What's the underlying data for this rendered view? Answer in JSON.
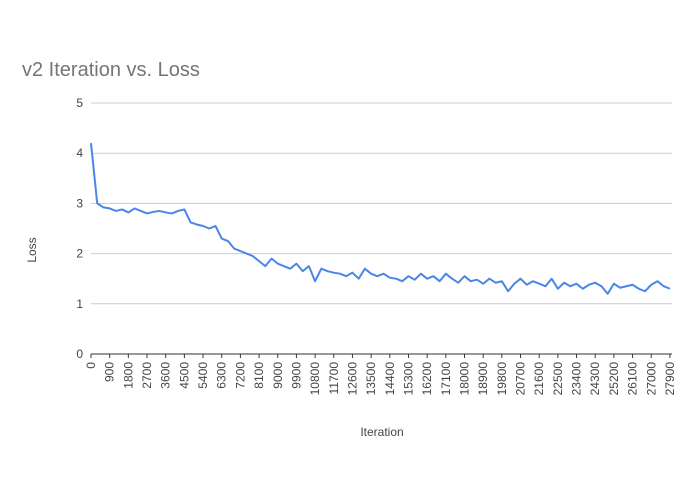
{
  "chart_data": {
    "type": "line",
    "title": "v2 Iteration vs. Loss",
    "x_label": "Iteration",
    "y_label": "Loss",
    "x": [
      0,
      300,
      600,
      900,
      1200,
      1500,
      1800,
      2100,
      2400,
      2700,
      3000,
      3300,
      3600,
      3900,
      4200,
      4500,
      4800,
      5100,
      5400,
      5700,
      6000,
      6300,
      6600,
      6900,
      7200,
      7500,
      7800,
      8100,
      8400,
      8700,
      9000,
      9300,
      9600,
      9900,
      10200,
      10500,
      10800,
      11100,
      11400,
      11700,
      12000,
      12300,
      12600,
      12900,
      13200,
      13500,
      13800,
      14100,
      14400,
      14700,
      15000,
      15300,
      15600,
      15900,
      16200,
      16500,
      16800,
      17100,
      17400,
      17700,
      18000,
      18300,
      18600,
      18900,
      19200,
      19500,
      19800,
      20100,
      20400,
      20700,
      21000,
      21300,
      21600,
      21900,
      22200,
      22500,
      22800,
      23100,
      23400,
      23700,
      24000,
      24300,
      24600,
      24900,
      25200,
      25500,
      25800,
      26100,
      26400,
      26700,
      27000,
      27300,
      27600,
      27900
    ],
    "series": [
      {
        "name": "Loss",
        "color": "#4a86e8",
        "values": [
          4.2,
          3.0,
          2.92,
          2.9,
          2.85,
          2.88,
          2.82,
          2.9,
          2.85,
          2.8,
          2.83,
          2.85,
          2.82,
          2.8,
          2.85,
          2.88,
          2.62,
          2.58,
          2.55,
          2.5,
          2.55,
          2.3,
          2.25,
          2.1,
          2.05,
          2.0,
          1.95,
          1.85,
          1.75,
          1.9,
          1.8,
          1.75,
          1.7,
          1.8,
          1.65,
          1.75,
          1.45,
          1.7,
          1.65,
          1.62,
          1.6,
          1.55,
          1.62,
          1.5,
          1.7,
          1.6,
          1.55,
          1.6,
          1.52,
          1.5,
          1.45,
          1.55,
          1.48,
          1.6,
          1.5,
          1.55,
          1.45,
          1.6,
          1.5,
          1.42,
          1.55,
          1.45,
          1.48,
          1.4,
          1.5,
          1.42,
          1.45,
          1.25,
          1.4,
          1.5,
          1.38,
          1.45,
          1.4,
          1.35,
          1.5,
          1.3,
          1.42,
          1.35,
          1.4,
          1.3,
          1.38,
          1.42,
          1.35,
          1.2,
          1.4,
          1.32,
          1.35,
          1.38,
          1.3,
          1.25,
          1.38,
          1.45,
          1.35,
          1.3
        ]
      }
    ],
    "xlim": [
      0,
      28000
    ],
    "xticks": [
      0,
      900,
      1800,
      2700,
      3600,
      4500,
      5400,
      6300,
      7200,
      8100,
      9000,
      9900,
      10800,
      11700,
      12600,
      13500,
      14400,
      15300,
      16200,
      17100,
      18000,
      18900,
      19800,
      20700,
      21600,
      22500,
      23400,
      24300,
      25200,
      26100,
      27000,
      27900
    ],
    "ylim": [
      0,
      5
    ],
    "yticks": [
      0,
      1,
      2,
      3,
      4,
      5
    ],
    "grid": true
  }
}
